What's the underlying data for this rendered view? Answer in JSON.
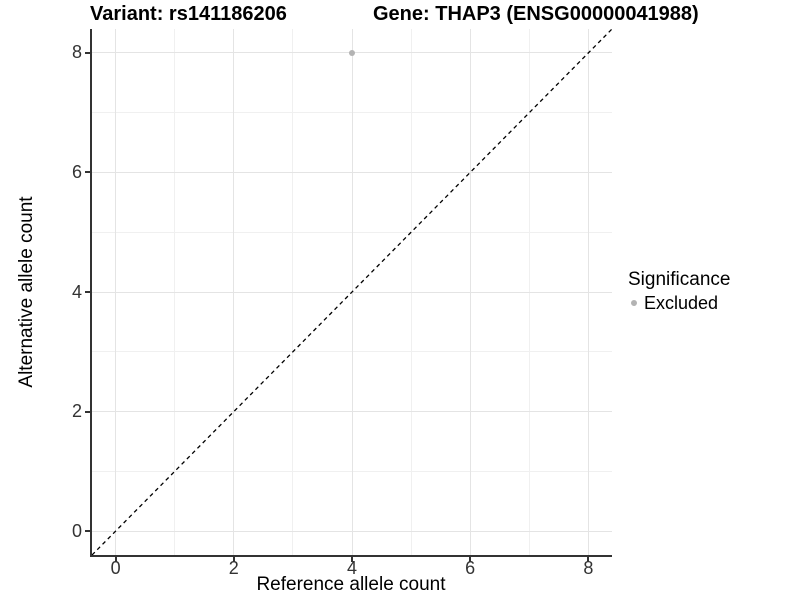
{
  "titles": {
    "variant": "Variant: rs141186206",
    "gene": "Gene: THAP3 (ENSG00000041988)"
  },
  "axes": {
    "x_label": "Reference allele count",
    "y_label": "Alternative allele count"
  },
  "legend": {
    "title": "Significance",
    "items": [
      {
        "label": "Excluded",
        "color": "#b3b3b3"
      }
    ]
  },
  "style": {
    "axis_line_color": "#333333",
    "tick_color": "#333333",
    "tick_label_color": "#333333",
    "major_grid_color": "#e4e4e4",
    "minor_grid_color": "#f0f0f0",
    "reference_line_color": "#000000",
    "background": "#ffffff"
  },
  "chart_data": {
    "type": "scatter",
    "title": "Variant: rs141186206 — Gene: THAP3 (ENSG00000041988)",
    "xlabel": "Reference allele count",
    "ylabel": "Alternative allele count",
    "xlim": [
      -0.4,
      8.4
    ],
    "ylim": [
      -0.4,
      8.4
    ],
    "x_ticks": [
      0,
      2,
      4,
      6,
      8
    ],
    "y_ticks": [
      0,
      2,
      4,
      6,
      8
    ],
    "x_minor_ticks": [
      1,
      3,
      5,
      7
    ],
    "y_minor_ticks": [
      1,
      3,
      5,
      7
    ],
    "grid": true,
    "legend_position": "right",
    "series": [
      {
        "name": "Excluded",
        "color": "#b3b3b3",
        "points": [
          {
            "x": 4,
            "y": 8
          }
        ]
      }
    ],
    "reference_line": {
      "type": "identity",
      "equation": "y = x",
      "style": "dashed",
      "color": "#000000"
    }
  }
}
